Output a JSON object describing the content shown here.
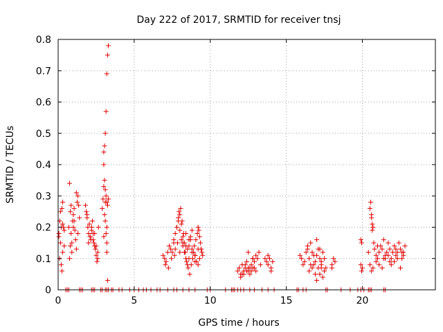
{
  "chart_data": {
    "type": "scatter",
    "title": "Day 222 of 2017, SRMTID for receiver tnsj",
    "xlabel": "GPS time / hours",
    "ylabel": "SRMTID / TECUs",
    "xlim": [
      0,
      24.8
    ],
    "ylim": [
      0,
      0.8
    ],
    "xticks": [
      0,
      5,
      10,
      15,
      20
    ],
    "yticks": [
      0,
      0.1,
      0.2,
      0.3,
      0.4,
      0.5,
      0.6,
      0.7,
      0.8
    ],
    "grid": true,
    "marker": "plus",
    "color": "#e00000",
    "series": [
      {
        "name": "SRMTID",
        "x": [
          0.05,
          0.1,
          0.15,
          0.2,
          0.25,
          0.3,
          0.35,
          0.4,
          0.1,
          0.2,
          0.25,
          0.3,
          0.4,
          0.15,
          0.05,
          0.3,
          0.7,
          0.75,
          0.8,
          0.85,
          0.9,
          0.95,
          1.0,
          1.05,
          1.1,
          0.8,
          0.9,
          1.0,
          1.2,
          1.25,
          1.3,
          1.35,
          1.4,
          1.15,
          1.2,
          1.3,
          0.75,
          0.85,
          1.05,
          1.8,
          1.85,
          1.9,
          1.95,
          2.0,
          2.05,
          2.1,
          2.15,
          2.2,
          2.25,
          2.3,
          2.35,
          2.4,
          2.45,
          2.5,
          2.55,
          2.6,
          2.65,
          1.9,
          2.0,
          2.1,
          2.2,
          2.3,
          2.4,
          2.5,
          2.6,
          2.9,
          2.95,
          3.0,
          3.05,
          3.1,
          3.15,
          3.2,
          3.25,
          3.3,
          3.3,
          3.3,
          3.25,
          3.2,
          3.15,
          3.1,
          3.05,
          3.0,
          3.0,
          3.1,
          3.2,
          3.2,
          3.15,
          3.1,
          3.05,
          3.0,
          3.25,
          3.2,
          6.9,
          7.0,
          7.1,
          7.2,
          7.3,
          7.4,
          7.5,
          7.6,
          7.7,
          7.8,
          7.9,
          8.0,
          8.1,
          8.2,
          8.3,
          8.4,
          8.5,
          8.6,
          8.7,
          8.8,
          8.9,
          9.0,
          9.1,
          9.2,
          9.3,
          9.4,
          9.5,
          7.05,
          7.25,
          7.45,
          7.65,
          7.85,
          7.95,
          8.05,
          8.15,
          8.25,
          8.35,
          8.45,
          8.55,
          8.65,
          8.75,
          8.85,
          8.95,
          9.05,
          9.15,
          9.25,
          9.35,
          9.45,
          7.8,
          7.9,
          8.0,
          8.1,
          8.2,
          8.3,
          8.4,
          8.5,
          8.6,
          8.7,
          8.8,
          9.0,
          9.2,
          9.3,
          9.4,
          7.6,
          7.7,
          8.0,
          8.2,
          8.4,
          8.6,
          8.8,
          9.0,
          9.2,
          11.8,
          11.9,
          12.0,
          12.1,
          12.2,
          12.3,
          12.4,
          12.5,
          12.6,
          12.7,
          12.8,
          12.9,
          13.0,
          13.1,
          13.2,
          13.3,
          12.0,
          12.2,
          12.4,
          12.6,
          12.8,
          13.0,
          12.1,
          12.3,
          12.5,
          12.7,
          12.9,
          12.5,
          12.8,
          13.6,
          13.7,
          13.8,
          13.9,
          14.0,
          14.1,
          13.8,
          14.0,
          15.9,
          16.0,
          16.1,
          16.2,
          16.3,
          16.4,
          16.5,
          16.6,
          16.7,
          16.8,
          16.9,
          17.0,
          17.1,
          17.2,
          17.3,
          17.4,
          17.5,
          17.6,
          16.5,
          16.7,
          16.9,
          17.1,
          17.3,
          17.5,
          16.4,
          16.6,
          16.8,
          17.0,
          17.2,
          17.4,
          17.0,
          17.2,
          17.3,
          18.0,
          18.1,
          18.2,
          18.0,
          19.9,
          19.95,
          20.0,
          19.9,
          19.95,
          20.4,
          20.5,
          20.55,
          20.6,
          20.65,
          20.7,
          20.75,
          20.8,
          20.9,
          21.0,
          21.1,
          21.2,
          21.3,
          21.4,
          21.5,
          21.6,
          21.7,
          21.8,
          21.9,
          22.0,
          22.1,
          22.2,
          22.3,
          22.4,
          22.5,
          22.6,
          22.7,
          22.8,
          20.5,
          20.6,
          20.7,
          20.9,
          21.1,
          21.3,
          21.5,
          21.7,
          21.9,
          22.1,
          22.3,
          22.5,
          22.7,
          21.0,
          21.4,
          21.8,
          22.2,
          22.6,
          20.6,
          20.65,
          0.5,
          0.6,
          0.7,
          1.4,
          1.5,
          1.6,
          2.2,
          2.3,
          2.4,
          2.8,
          2.9,
          3.1,
          3.2,
          3.3,
          3.5,
          3.6,
          4.0,
          4.2,
          4.7,
          5.0,
          5.3,
          5.6,
          5.8,
          6.1,
          6.5,
          6.7,
          7.2,
          7.6,
          7.8,
          8.2,
          8.6,
          9.0,
          9.8,
          10.0,
          11.0,
          11.4,
          11.5,
          11.6,
          11.8,
          12.0,
          12.2,
          12.6,
          12.9,
          13.4,
          13.8,
          14.2,
          15.7,
          15.8,
          16.1,
          16.3,
          17.6,
          17.7,
          18.6,
          19.2,
          19.7,
          19.9,
          20.1,
          20.4,
          20.5,
          20.6,
          21.4,
          21.5
        ],
        "y": [
          0.18,
          0.22,
          0.15,
          0.2,
          0.26,
          0.28,
          0.2,
          0.19,
          0.1,
          0.08,
          0.06,
          0.12,
          0.14,
          0.25,
          0.17,
          0.21,
          0.2,
          0.34,
          0.25,
          0.18,
          0.15,
          0.22,
          0.24,
          0.26,
          0.19,
          0.14,
          0.12,
          0.2,
          0.31,
          0.28,
          0.3,
          0.27,
          0.23,
          0.16,
          0.13,
          0.18,
          0.1,
          0.27,
          0.22,
          0.27,
          0.25,
          0.23,
          0.2,
          0.18,
          0.21,
          0.17,
          0.16,
          0.19,
          0.22,
          0.18,
          0.15,
          0.14,
          0.13,
          0.11,
          0.09,
          0.12,
          0.2,
          0.24,
          0.15,
          0.17,
          0.2,
          0.16,
          0.18,
          0.14,
          0.1,
          0.26,
          0.29,
          0.33,
          0.35,
          0.32,
          0.3,
          0.28,
          0.27,
          0.29,
          0.78,
          0.78,
          0.75,
          0.69,
          0.57,
          0.5,
          0.46,
          0.44,
          0.4,
          0.28,
          0.2,
          0.15,
          0.18,
          0.22,
          0.24,
          0.17,
          0.03,
          0.12,
          0.11,
          0.1,
          0.09,
          0.12,
          0.14,
          0.13,
          0.12,
          0.16,
          0.18,
          0.2,
          0.22,
          0.24,
          0.21,
          0.17,
          0.15,
          0.14,
          0.13,
          0.1,
          0.16,
          0.19,
          0.12,
          0.11,
          0.09,
          0.2,
          0.17,
          0.13,
          0.11,
          0.08,
          0.07,
          0.1,
          0.11,
          0.15,
          0.25,
          0.26,
          0.22,
          0.18,
          0.12,
          0.09,
          0.07,
          0.05,
          0.08,
          0.1,
          0.14,
          0.16,
          0.18,
          0.19,
          0.15,
          0.12,
          0.2,
          0.23,
          0.19,
          0.16,
          0.14,
          0.12,
          0.1,
          0.08,
          0.14,
          0.17,
          0.13,
          0.11,
          0.08,
          0.1,
          0.13,
          0.15,
          0.13,
          0.12,
          0.15,
          0.18,
          0.16,
          0.12,
          0.09,
          0.13,
          0.06,
          0.07,
          0.05,
          0.08,
          0.06,
          0.07,
          0.09,
          0.06,
          0.07,
          0.08,
          0.1,
          0.09,
          0.11,
          0.1,
          0.12,
          0.08,
          0.04,
          0.05,
          0.06,
          0.05,
          0.07,
          0.06,
          0.05,
          0.08,
          0.07,
          0.06,
          0.07,
          0.12,
          0.1,
          0.1,
          0.09,
          0.08,
          0.1,
          0.07,
          0.09,
          0.11,
          0.06,
          0.11,
          0.1,
          0.08,
          0.09,
          0.12,
          0.14,
          0.1,
          0.08,
          0.07,
          0.11,
          0.09,
          0.16,
          0.13,
          0.1,
          0.08,
          0.12,
          0.1,
          0.07,
          0.06,
          0.12,
          0.05,
          0.07,
          0.09,
          0.06,
          0.13,
          0.15,
          0.08,
          0.11,
          0.13,
          0.04,
          0.03,
          0.05,
          0.07,
          0.08,
          0.1,
          0.09,
          0.07,
          0.16,
          0.15,
          0.07,
          0.08,
          0.06,
          0.12,
          0.26,
          0.28,
          0.24,
          0.21,
          0.2,
          0.15,
          0.13,
          0.11,
          0.1,
          0.12,
          0.14,
          0.13,
          0.1,
          0.11,
          0.12,
          0.15,
          0.13,
          0.1,
          0.12,
          0.14,
          0.11,
          0.12,
          0.15,
          0.13,
          0.1,
          0.12,
          0.14,
          0.08,
          0.06,
          0.07,
          0.09,
          0.08,
          0.07,
          0.1,
          0.11,
          0.08,
          0.09,
          0.1,
          0.07,
          0.11,
          0.14,
          0.16,
          0.09,
          0.13,
          0.12,
          0.23,
          0.19,
          0,
          0,
          0,
          0,
          0,
          0,
          0,
          0,
          0,
          0,
          0,
          0,
          0,
          0,
          0,
          0,
          0,
          0,
          0,
          0,
          0,
          0,
          0,
          0,
          0,
          0,
          0,
          0,
          0,
          0,
          0,
          0,
          0,
          0,
          0,
          0,
          0,
          0,
          0,
          0,
          0,
          0,
          0,
          0,
          0,
          0,
          0,
          0,
          0,
          0,
          0,
          0,
          0,
          0,
          0,
          0,
          0,
          0,
          0,
          0,
          0,
          0
        ]
      }
    ]
  }
}
